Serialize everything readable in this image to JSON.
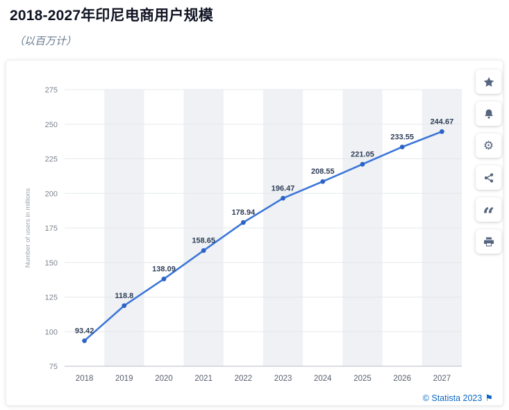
{
  "header": {
    "title": "2018-2027年印尼电商用户规模",
    "subtitle": "（以百万计）"
  },
  "chart_data": {
    "type": "line",
    "title": "2018-2027年印尼电商用户规模",
    "subtitle": "（以百万计）",
    "categories": [
      "2018",
      "2019",
      "2020",
      "2021",
      "2022",
      "2023",
      "2024",
      "2025",
      "2026",
      "2027"
    ],
    "values": [
      93.42,
      118.8,
      138.09,
      158.65,
      178.94,
      196.47,
      208.55,
      221.05,
      233.55,
      244.67
    ],
    "ylabel": "Number of users in millions",
    "xlabel": "",
    "ylim": [
      75,
      275
    ],
    "yticks": [
      75,
      100,
      125,
      150,
      175,
      200,
      225,
      250,
      275
    ],
    "grid": true,
    "legend": false,
    "band_indices": [
      1,
      3,
      5,
      7,
      9
    ],
    "colors": {
      "line": "#3a76d8",
      "point": "#2e63c6",
      "band": "#eff1f4",
      "grid": "#e4e7eb",
      "axis": "#b7bdc7",
      "tick_label": "#7a828e",
      "x_label": "#555d6b",
      "value_label": "#2e3d57",
      "axis_title": "#9aa2ad"
    }
  },
  "toolbar": {
    "gear_glyph": "⚙",
    "quote_glyph": "“",
    "buttons": [
      {
        "id": "favorite",
        "icon": "star-icon"
      },
      {
        "id": "alerts",
        "icon": "bell-icon"
      },
      {
        "id": "settings",
        "icon": "gear-icon"
      },
      {
        "id": "share",
        "icon": "share-icon"
      },
      {
        "id": "cite",
        "icon": "quote-icon"
      },
      {
        "id": "print",
        "icon": "printer-icon"
      }
    ]
  },
  "footer": {
    "copyright": "© Statista 2023",
    "flag_glyph": "⚑",
    "link_color": "#0b67c2"
  }
}
